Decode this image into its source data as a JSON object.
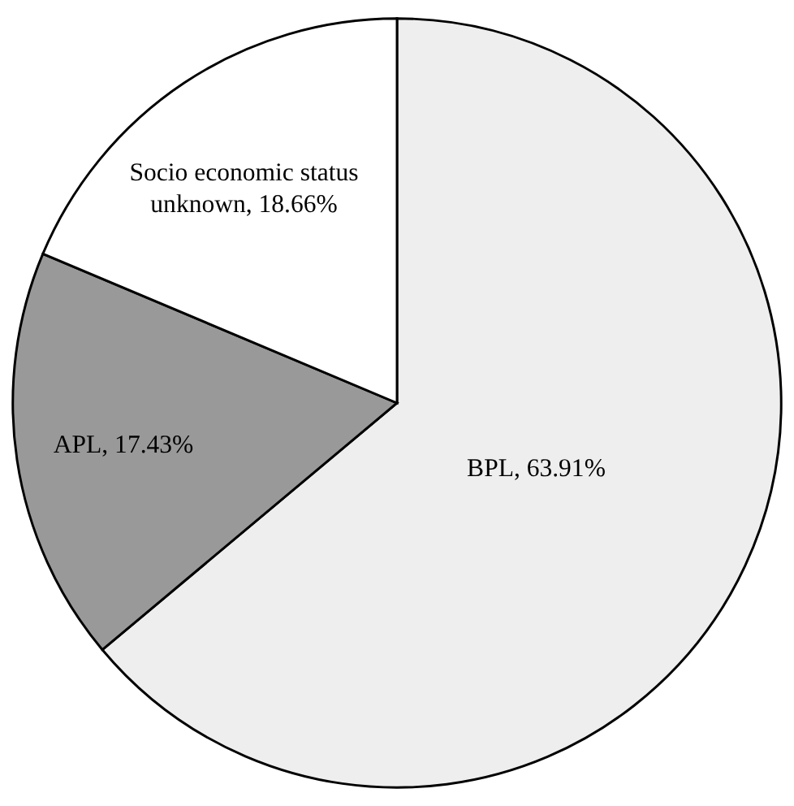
{
  "chart_data": {
    "type": "pie",
    "categories": [
      "BPL",
      "APL",
      "Socio economic status unknown"
    ],
    "values": [
      63.91,
      17.43,
      18.66
    ],
    "colors": [
      "#eeeeee",
      "#999999",
      "#ffffff"
    ],
    "value_labels": [
      "63.91%",
      "17.43%",
      "18.66%"
    ],
    "legend": false
  }
}
